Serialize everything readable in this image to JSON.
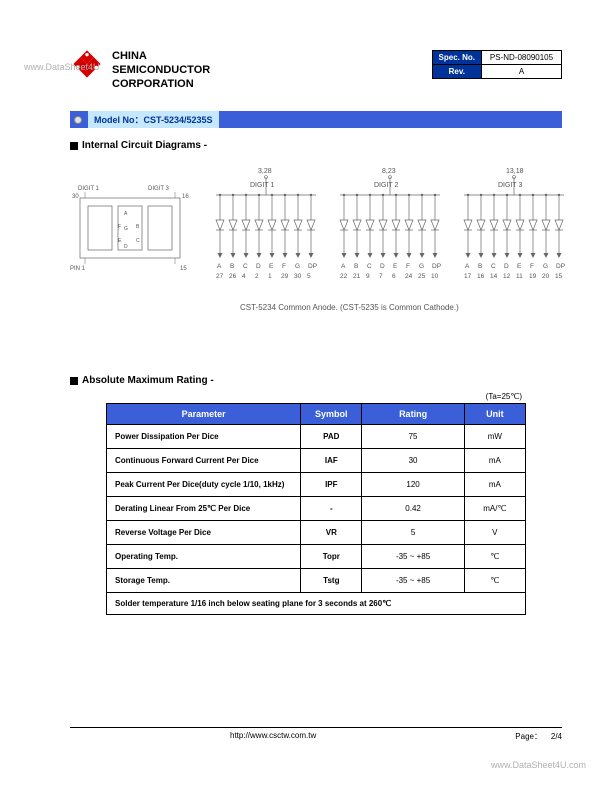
{
  "watermark_tl": "www.DataSheet4U",
  "watermark_br": "www.DataSheet4U.com",
  "company": {
    "line1": "CHINA",
    "line2": "SEMICONDUCTOR",
    "line3": "CORPORATION"
  },
  "spec_box": {
    "spec_no_label": "Spec. No.",
    "spec_no_value": "PS-ND-08090105",
    "rev_label": "Rev.",
    "rev_value": "A"
  },
  "model": {
    "prefix": "Model No：",
    "value": "CST-5234/5235S"
  },
  "sections": {
    "internal": "Internal Circuit Diagrams -",
    "absolute": "Absolute Maximum Rating -"
  },
  "diagram": {
    "digit_labels": [
      "DIGIT 1",
      "DIGIT 2",
      "DIGIT 3"
    ],
    "pkg_pins": {
      "tl": "30",
      "tr": "16",
      "bl": "PIN 1",
      "br": "15"
    },
    "pkg_top_labels": [
      "DIGIT 1",
      "DIGIT 3"
    ],
    "segments": [
      "A",
      "B",
      "C",
      "D",
      "E",
      "F",
      "G",
      "DP"
    ],
    "top_pins": [
      "3,28",
      "8,23",
      "13,18"
    ],
    "bottom_pins_d1": [
      "27",
      "26",
      "4",
      "2",
      "1",
      "29",
      "30",
      "5"
    ],
    "bottom_pins_d2": [
      "22",
      "21",
      "9",
      "7",
      "6",
      "24",
      "25",
      "10"
    ],
    "bottom_pins_d3": [
      "17",
      "16",
      "14",
      "12",
      "11",
      "19",
      "20",
      "15"
    ],
    "caption": "CST-5234 Common Anode. (CST-5235 is Common Cathode.)"
  },
  "ta_note": "(Ta=25℃)",
  "rating_headers": [
    "Parameter",
    "Symbol",
    "Rating",
    "Unit"
  ],
  "rating_rows": [
    {
      "param": "Power Dissipation Per Dice",
      "symbol": "PAD",
      "rating": "75",
      "unit": "mW"
    },
    {
      "param": "Continuous Forward Current Per Dice",
      "symbol": "IAF",
      "rating": "30",
      "unit": "mA"
    },
    {
      "param": "Peak Current Per Dice(duty cycle 1/10, 1kHz)",
      "symbol": "IPF",
      "rating": "120",
      "unit": "mA"
    },
    {
      "param": "Derating Linear From 25℃ Per Dice",
      "symbol": "-",
      "rating": "0.42",
      "unit": "mA/℃"
    },
    {
      "param": "Reverse Voltage Per Dice",
      "symbol": "VR",
      "rating": "5",
      "unit": "V"
    },
    {
      "param": "Operating Temp.",
      "symbol": "Topr",
      "rating": "-35 ~ +85",
      "unit": "℃"
    },
    {
      "param": "Storage Temp.",
      "symbol": "Tstg",
      "rating": "-35 ~ +85",
      "unit": "℃"
    }
  ],
  "solder_note": "Solder temperature 1/16 inch below seating plane for 3 seconds at 260℃",
  "footer": {
    "url": "http://www.csctw.com.tw",
    "page_label": "Page：",
    "page_value": "2/4"
  },
  "styling": {
    "brand_blue": "#3a5fd8",
    "header_blue": "#003399",
    "light_blue": "#c5e8ff",
    "logo_red": "#d40000",
    "text_gray": "#666666",
    "watermark_gray": "#b0b0b0"
  }
}
